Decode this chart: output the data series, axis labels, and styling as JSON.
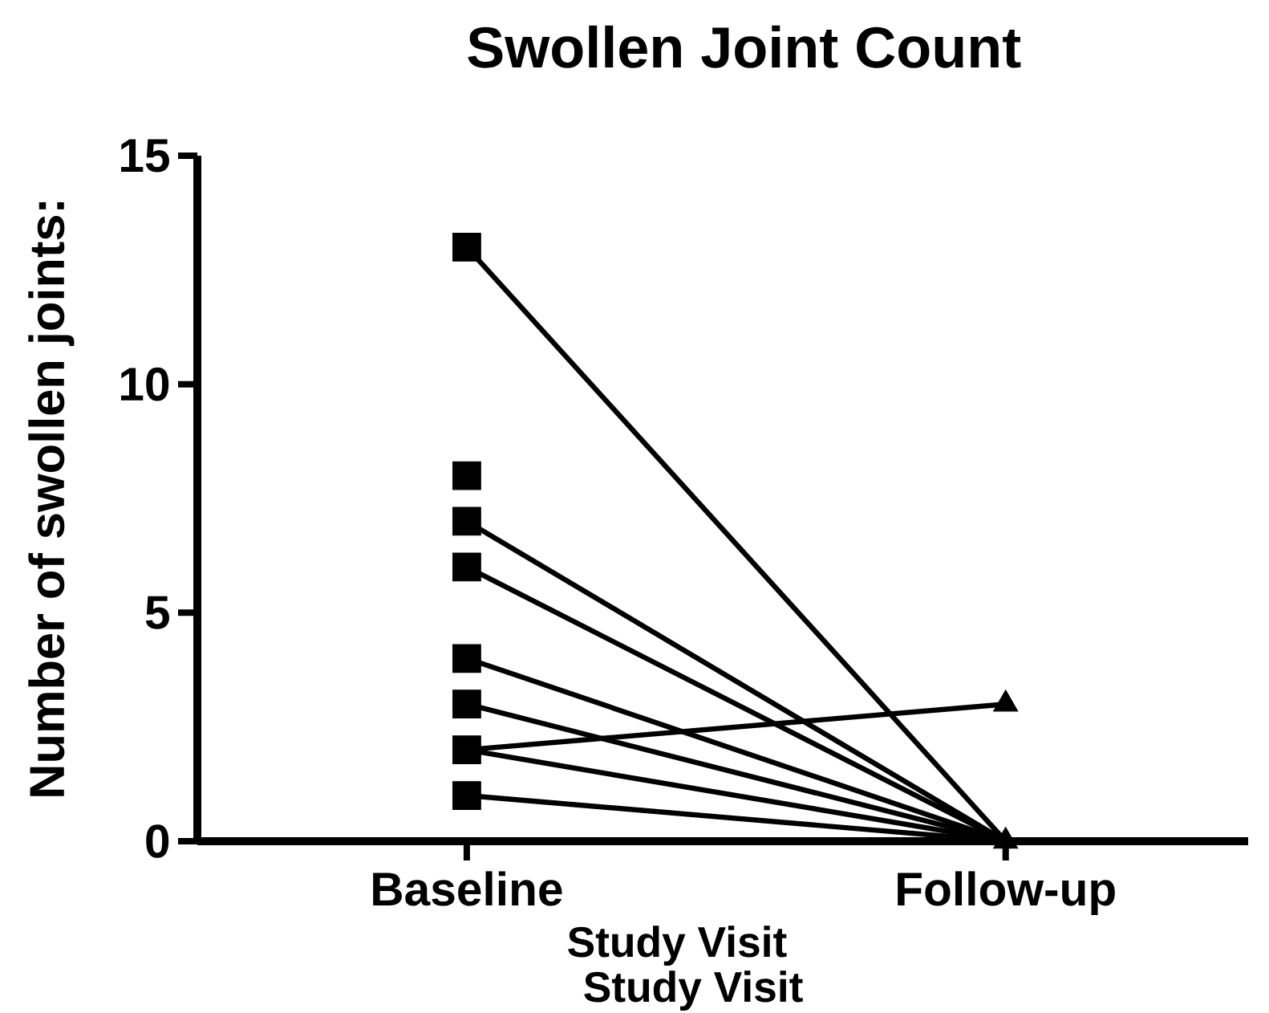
{
  "chart_data": {
    "type": "line",
    "title": "Swollen Joint Count",
    "xlabel": "Study Visit",
    "ylabel": "Number of swollen joints:",
    "annotations": [
      "Study Visit"
    ],
    "categories": [
      "Baseline",
      "Follow-up"
    ],
    "ylim": [
      0,
      15
    ],
    "yticks": [
      0,
      5,
      10,
      15
    ],
    "grid": false,
    "series": [
      {
        "color": "#000000",
        "values": [
          13,
          0
        ],
        "marker": "none"
      },
      {
        "color": "#000000",
        "values": [
          7,
          0
        ],
        "marker": "none"
      },
      {
        "color": "#000000",
        "values": [
          6,
          0
        ],
        "marker": "none"
      },
      {
        "color": "#000000",
        "values": [
          4,
          0
        ],
        "marker": "none"
      },
      {
        "color": "#000000",
        "values": [
          3,
          0
        ],
        "marker": "none"
      },
      {
        "color": "#000000",
        "values": [
          2,
          0
        ],
        "marker": "none"
      },
      {
        "color": "#000000",
        "values": [
          2,
          3
        ],
        "marker": "none"
      },
      {
        "color": "#000000",
        "values": [
          1,
          0
        ],
        "marker": "none"
      },
      {
        "type": "scatter",
        "color": "#000000",
        "marker": "square",
        "x": [
          "Baseline",
          "Baseline",
          "Baseline",
          "Baseline",
          "Baseline",
          "Baseline",
          "Baseline",
          "Baseline"
        ],
        "values": [
          13,
          8,
          7,
          6,
          4,
          3,
          2,
          1
        ]
      },
      {
        "type": "scatter",
        "color": "#000000",
        "marker": "triangle",
        "x": [
          "Follow-up",
          "Follow-up"
        ],
        "values": [
          0,
          3
        ]
      }
    ]
  }
}
